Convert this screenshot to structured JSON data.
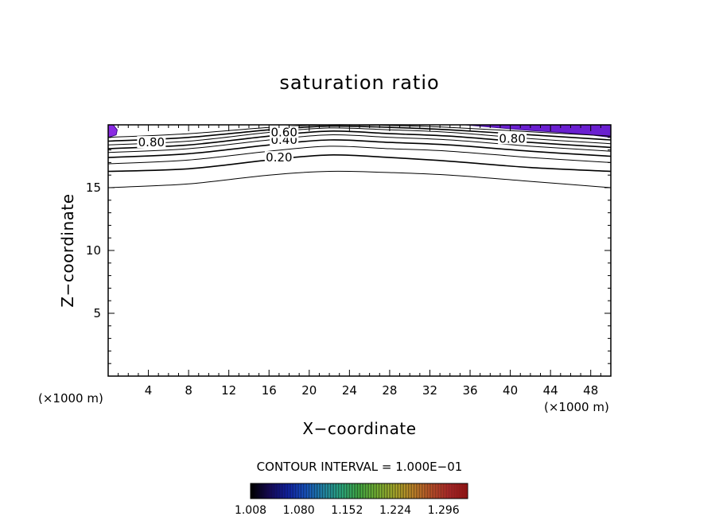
{
  "chart_data": {
    "type": "contour",
    "title": "saturation ratio",
    "xlabel": "X−coordinate",
    "ylabel": "Z−coordinate",
    "x_unit": "(×1000 m)",
    "y_unit": "(×1000 m)",
    "xlim": [
      0,
      50
    ],
    "ylim": [
      0,
      20
    ],
    "xticks": [
      4,
      8,
      12,
      16,
      20,
      24,
      28,
      32,
      36,
      40,
      44,
      48
    ],
    "yticks": [
      5,
      10,
      15
    ],
    "contour_interval_label": "CONTOUR INTERVAL = 1.000E−01",
    "contour_levels": [
      0.1,
      0.2,
      0.3,
      0.4,
      0.5,
      0.6,
      0.7,
      0.8,
      0.9,
      1.0
    ],
    "contour_labels": [
      {
        "text": "0.20",
        "x": 17.0,
        "z": 17.4
      },
      {
        "text": "0.40",
        "x": 17.5,
        "z": 18.8
      },
      {
        "text": "0.60",
        "x": 17.5,
        "z": 19.4
      },
      {
        "text": "0.80",
        "x": 4.3,
        "z": 18.6
      },
      {
        "text": "0.80",
        "x": 40.2,
        "z": 18.9
      }
    ],
    "contour_lines": [
      {
        "level": 0.1,
        "x": [
          0,
          8,
          16,
          22,
          28,
          34,
          42,
          50
        ],
        "z": [
          15.0,
          15.3,
          16.0,
          16.3,
          16.2,
          16.0,
          15.5,
          15.0
        ]
      },
      {
        "level": 0.2,
        "x": [
          0,
          8,
          16,
          22,
          28,
          34,
          42,
          50
        ],
        "z": [
          16.3,
          16.5,
          17.2,
          17.6,
          17.4,
          17.1,
          16.6,
          16.3
        ]
      },
      {
        "level": 0.3,
        "x": [
          0,
          8,
          16,
          22,
          28,
          34,
          42,
          50
        ],
        "z": [
          16.9,
          17.2,
          17.9,
          18.3,
          18.1,
          17.9,
          17.4,
          17.0
        ]
      },
      {
        "level": 0.4,
        "x": [
          0,
          8,
          16,
          22,
          28,
          34,
          42,
          50
        ],
        "z": [
          17.4,
          17.7,
          18.4,
          18.8,
          18.6,
          18.4,
          17.9,
          17.5
        ]
      },
      {
        "level": 0.5,
        "x": [
          0,
          8,
          16,
          22,
          28,
          34,
          42,
          50
        ],
        "z": [
          17.8,
          18.1,
          18.8,
          19.2,
          19.0,
          18.8,
          18.3,
          17.9
        ]
      },
      {
        "level": 0.6,
        "x": [
          0,
          8,
          16,
          22,
          28,
          34,
          42,
          50
        ],
        "z": [
          18.1,
          18.4,
          19.1,
          19.5,
          19.3,
          19.1,
          18.6,
          18.2
        ]
      },
      {
        "level": 0.7,
        "x": [
          0,
          8,
          16,
          22,
          28,
          34,
          42,
          50
        ],
        "z": [
          18.4,
          18.7,
          19.4,
          19.75,
          19.6,
          19.4,
          18.9,
          18.5
        ]
      },
      {
        "level": 0.8,
        "x": [
          0,
          8,
          16,
          22,
          28,
          34,
          42,
          50
        ],
        "z": [
          18.7,
          19.0,
          19.6,
          19.9,
          19.8,
          19.6,
          19.2,
          18.8
        ]
      },
      {
        "level": 0.9,
        "x": [
          0,
          8,
          16,
          22,
          28,
          34,
          42,
          50
        ],
        "z": [
          19.0,
          19.3,
          19.8,
          20.0,
          19.95,
          19.8,
          19.45,
          19.1
        ]
      }
    ],
    "shaded_regions": [
      {
        "name": "supersaturated-right",
        "x": [
          35.5,
          39,
          42,
          45,
          48,
          50,
          50
        ],
        "z": [
          20.0,
          19.75,
          19.55,
          19.4,
          19.2,
          19.0,
          20.0
        ],
        "color": "#6a1fd0"
      },
      {
        "name": "supersaturated-left",
        "x": [
          0,
          0.8,
          0.9,
          0.5,
          0
        ],
        "z": [
          19.0,
          19.2,
          19.6,
          20.0,
          20.0
        ],
        "color": "#8a2be2"
      }
    ],
    "colorbar": {
      "min": 1.008,
      "max": 1.332,
      "tick_labels": [
        "1.008",
        "1.080",
        "1.152",
        "1.224",
        "1.296"
      ],
      "colors": [
        "#000000",
        "#1a0a6e",
        "#1428c8",
        "#1e64e6",
        "#28a0c8",
        "#32c896",
        "#50c850",
        "#8cd23c",
        "#c8c832",
        "#e6a032",
        "#e66432",
        "#dc3232",
        "#c81e1e"
      ]
    }
  }
}
